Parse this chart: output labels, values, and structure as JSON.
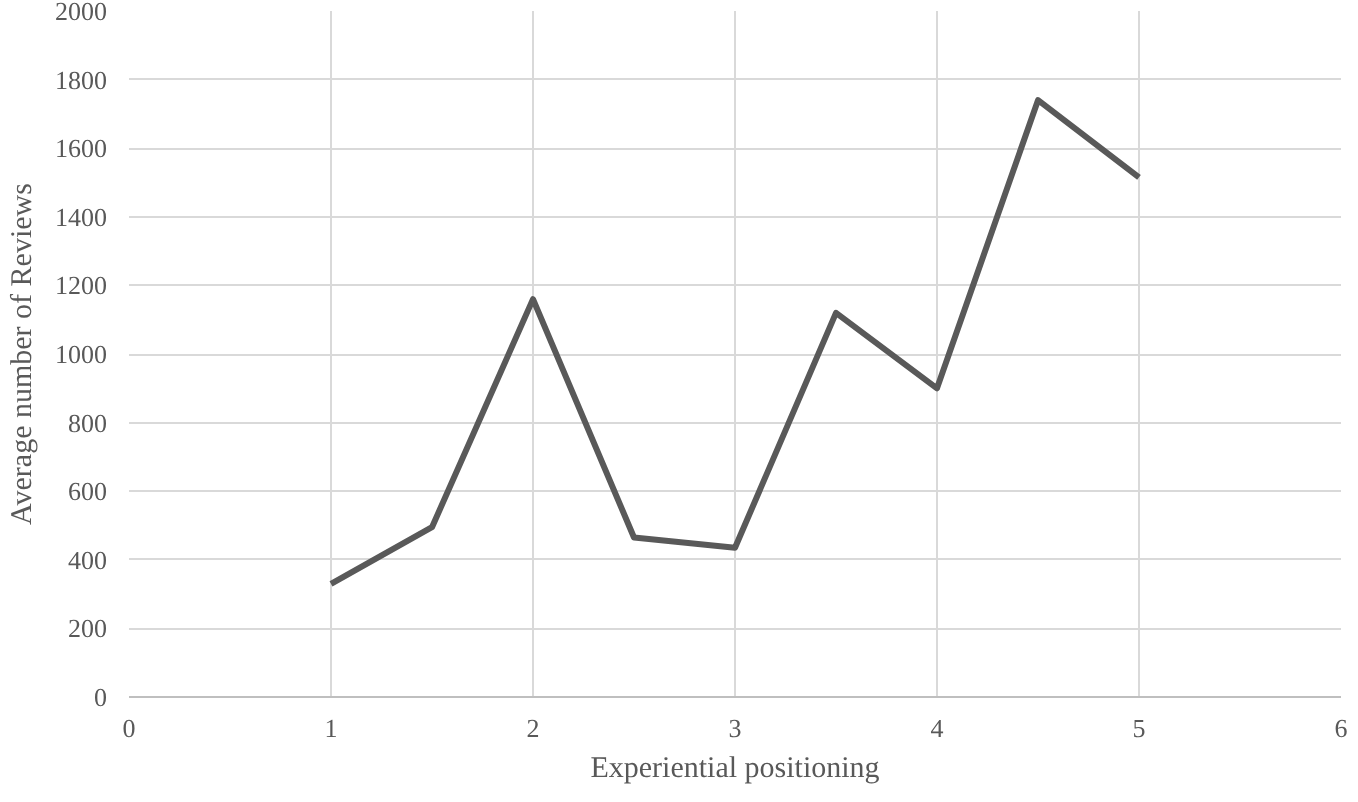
{
  "chart_data": {
    "type": "line",
    "xlabel": "Experiential positioning",
    "ylabel": "Average number of Reviews",
    "x": [
      1,
      1.5,
      2,
      2.5,
      3,
      3.5,
      4,
      4.5,
      5
    ],
    "series": [
      {
        "color": "#595959",
        "values": [
          330,
          495,
          1160,
          465,
          435,
          1120,
          900,
          1740,
          1515
        ]
      }
    ],
    "xlim": [
      0,
      6
    ],
    "xticks": [
      0,
      1,
      2,
      3,
      4,
      5,
      6
    ],
    "ylim": [
      0,
      2000
    ],
    "yticks": [
      0,
      200,
      400,
      600,
      800,
      1000,
      1200,
      1400,
      1600,
      1800,
      2000
    ],
    "grid": true,
    "marker": "none",
    "line_style": "solid"
  }
}
